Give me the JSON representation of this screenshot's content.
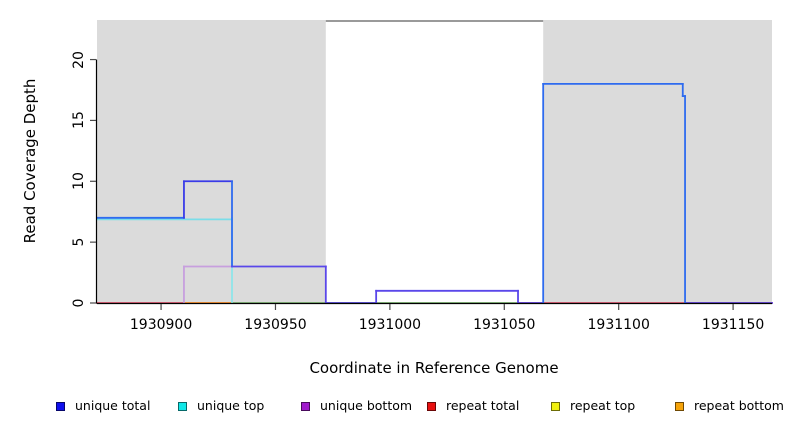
{
  "titles": {
    "x_axis": "Coordinate in Reference Genome",
    "y_axis": "Read Coverage Depth"
  },
  "colors": {
    "background": "#FFFFFF",
    "shaded_region": "#DBDBDB",
    "axis_line": "#000000",
    "tick_mark": "#4A4A4A",
    "top_marker": "#8C8C8C"
  },
  "chart_data": {
    "type": "line",
    "subtype": "step-coverage",
    "title": "",
    "xlabel": "Coordinate in Reference Genome",
    "ylabel": "Read Coverage Depth",
    "xlim": [
      1930872,
      1931167
    ],
    "ylim": [
      0,
      23.25
    ],
    "x_ticks": [
      1930900,
      1930950,
      1931000,
      1931050,
      1931100,
      1931150
    ],
    "y_ticks": [
      0,
      5,
      10,
      15,
      20
    ],
    "grid": false,
    "legend_position": "bottom",
    "shaded_regions": [
      {
        "x1": 1930872,
        "x2": 1930972
      },
      {
        "x1": 1931067,
        "x2": 1931167
      }
    ],
    "top_marker": {
      "x1": 1930972,
      "x2": 1931067
    },
    "series": [
      {
        "name": "unique total",
        "color": "#1010EE",
        "steps": [
          [
            1930872,
            7
          ],
          [
            1930910,
            10
          ],
          [
            1930931,
            3
          ],
          [
            1930972,
            0
          ],
          [
            1930994,
            1
          ],
          [
            1931056,
            0
          ],
          [
            1931067,
            18
          ],
          [
            1931128,
            17
          ],
          [
            1931129,
            0
          ],
          [
            1931167,
            0
          ]
        ]
      },
      {
        "name": "unique top",
        "color": "#10E8E8",
        "steps": [
          [
            1930872,
            7
          ],
          [
            1930931,
            0
          ],
          [
            1931067,
            18
          ],
          [
            1931128,
            17
          ],
          [
            1931129,
            0
          ],
          [
            1931167,
            0
          ]
        ]
      },
      {
        "name": "unique bottom",
        "color": "#A01ACC",
        "steps": [
          [
            1930872,
            0
          ],
          [
            1930910,
            3
          ],
          [
            1930972,
            0
          ],
          [
            1930994,
            1
          ],
          [
            1931056,
            0
          ],
          [
            1931167,
            0
          ]
        ]
      },
      {
        "name": "repeat total",
        "color": "#E81010",
        "steps": [
          [
            1930872,
            0
          ],
          [
            1931167,
            0
          ]
        ]
      },
      {
        "name": "repeat top",
        "color": "#F0F010",
        "steps": [
          [
            1930872,
            0
          ],
          [
            1931167,
            0
          ]
        ]
      },
      {
        "name": "repeat bottom",
        "color": "#F5A30A",
        "steps": [
          [
            1930872,
            0
          ],
          [
            1931167,
            0
          ]
        ]
      }
    ],
    "render_segments": [
      {
        "x1": 1930872,
        "x2": 1931167,
        "y1": 0,
        "y2": 0,
        "c": "#E0506B"
      },
      {
        "x1": 1930910,
        "x2": 1930931,
        "y1": 0,
        "y2": 0,
        "c": "#FF9E2C"
      },
      {
        "x1": 1930931,
        "x2": 1931056,
        "y1": 0,
        "y2": 0,
        "c": "#7CC87F"
      },
      {
        "x1": 1930972,
        "x2": 1930994,
        "y1": 0,
        "y2": 0,
        "c": "#5A47EA"
      },
      {
        "x1": 1931056,
        "x2": 1931067,
        "y1": 0,
        "y2": 0,
        "c": "#5A47EA"
      },
      {
        "x1": 1931129,
        "x2": 1931167,
        "y1": 0,
        "y2": 0,
        "c": "#5A47EA"
      },
      {
        "x1": 1930872,
        "x2": 1930931,
        "y1": 7,
        "y2": 7,
        "c": "#7BDDE8",
        "oy": 1.6
      },
      {
        "x1": 1930872,
        "x2": 1930910,
        "y1": 7,
        "y2": 7,
        "c": "#2E6BEF"
      },
      {
        "x1": 1930910,
        "x2": 1930910,
        "y1": 0,
        "y2": 3,
        "c": "#C79FDE"
      },
      {
        "x1": 1930910,
        "x2": 1930931,
        "y1": 3,
        "y2": 3,
        "c": "#C79FDE"
      },
      {
        "x1": 1930910,
        "x2": 1930910,
        "y1": 7,
        "y2": 10,
        "c": "#3A3BE8"
      },
      {
        "x1": 1930910,
        "x2": 1930931,
        "y1": 10,
        "y2": 10,
        "c": "#3A3BE8"
      },
      {
        "x1": 1930931,
        "x2": 1930931,
        "y1": 0,
        "y2": 7,
        "c": "#8FE5E9"
      },
      {
        "x1": 1930931,
        "x2": 1930931,
        "y1": 3,
        "y2": 10,
        "c": "#2E6BEF"
      },
      {
        "x1": 1930931,
        "x2": 1930972,
        "y1": 3,
        "y2": 3,
        "c": "#5A47EA"
      },
      {
        "x1": 1930972,
        "x2": 1930972,
        "y1": 0,
        "y2": 3,
        "c": "#5A47EA"
      },
      {
        "x1": 1930994,
        "x2": 1930994,
        "y1": 0,
        "y2": 1,
        "c": "#5A47EA"
      },
      {
        "x1": 1930994,
        "x2": 1931056,
        "y1": 1,
        "y2": 1,
        "c": "#5A47EA"
      },
      {
        "x1": 1931056,
        "x2": 1931056,
        "y1": 0,
        "y2": 1,
        "c": "#5A47EA"
      },
      {
        "x1": 1931067,
        "x2": 1931067,
        "y1": 0,
        "y2": 18,
        "c": "#2E6BEF"
      },
      {
        "x1": 1931067,
        "x2": 1931128,
        "y1": 18,
        "y2": 18,
        "c": "#2E6BEF"
      },
      {
        "x1": 1931128,
        "x2": 1931128,
        "y1": 17,
        "y2": 18,
        "c": "#2E6BEF"
      },
      {
        "x1": 1931128,
        "x2": 1931129,
        "y1": 17,
        "y2": 17,
        "c": "#2E6BEF"
      },
      {
        "x1": 1931129,
        "x2": 1931129,
        "y1": 0,
        "y2": 17,
        "c": "#2E6BEF"
      }
    ]
  },
  "legend": {
    "items": [
      {
        "label": "unique total",
        "color": "#1010EE"
      },
      {
        "label": "unique top",
        "color": "#10E8E8"
      },
      {
        "label": "unique bottom",
        "color": "#A01ACC"
      },
      {
        "label": "repeat total",
        "color": "#E81010"
      },
      {
        "label": "repeat top",
        "color": "#F0F010"
      },
      {
        "label": "repeat bottom",
        "color": "#F5A30A"
      }
    ]
  }
}
